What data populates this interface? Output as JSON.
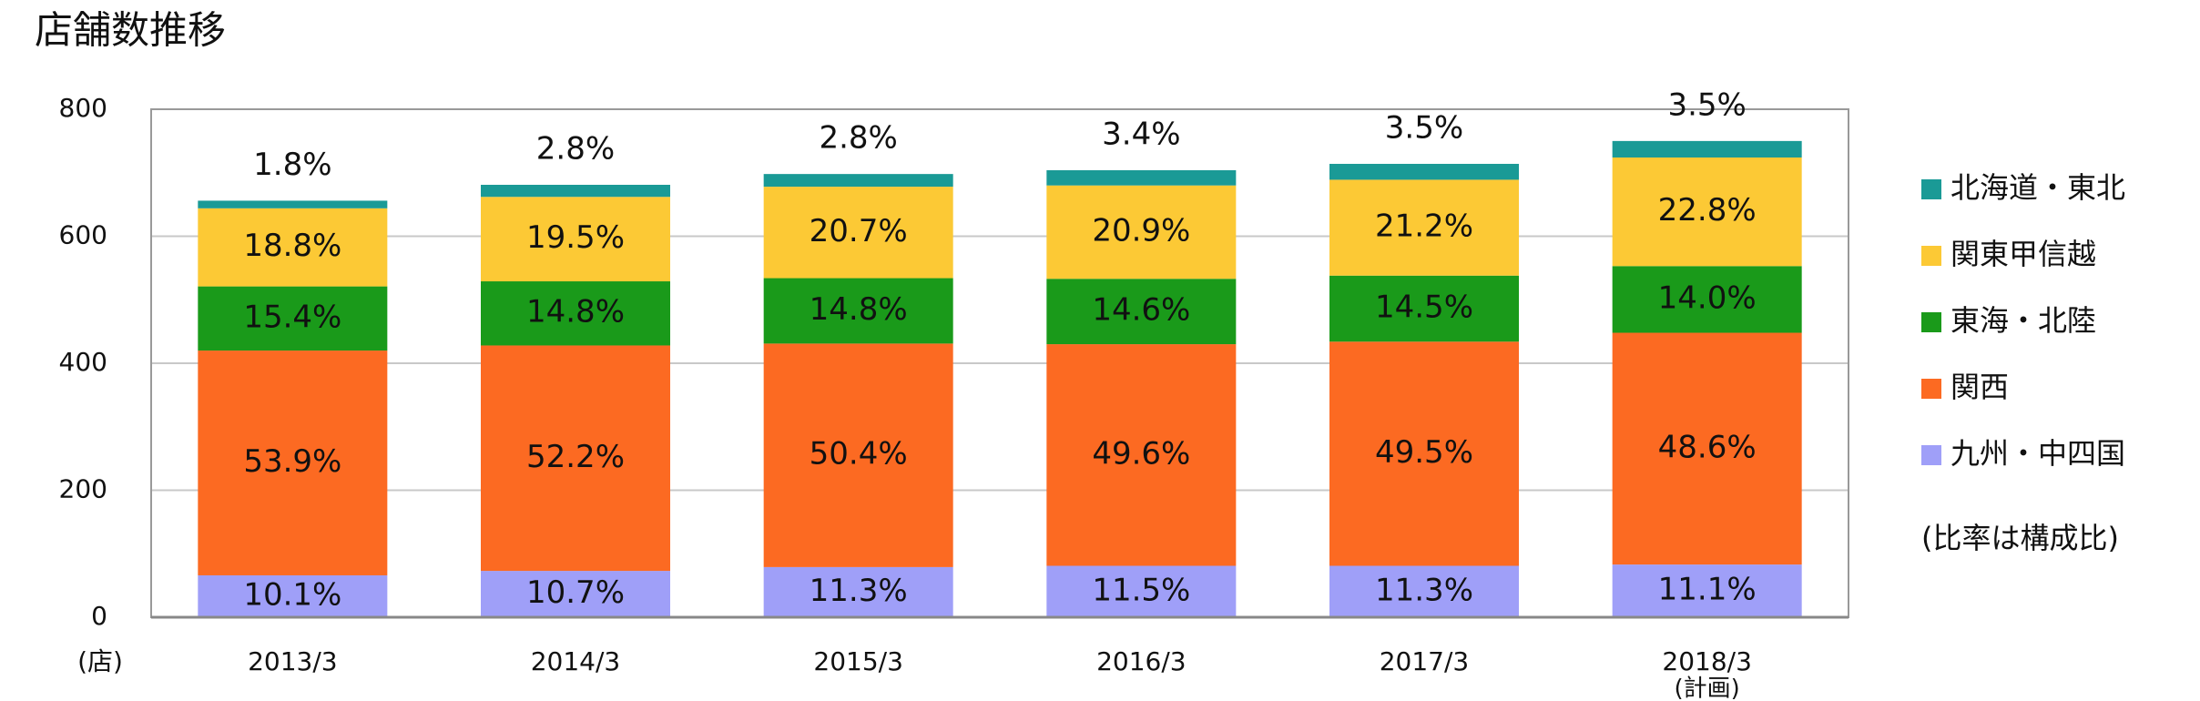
{
  "chart_data": {
    "type": "stacked-bar",
    "title": "店舗数推移",
    "y_unit": "(店)",
    "categories": [
      "2013/3",
      "2014/3",
      "2015/3",
      "2016/3",
      "2017/3",
      "2018/3"
    ],
    "category_notes": [
      null,
      null,
      null,
      null,
      null,
      "(計画)"
    ],
    "series": [
      {
        "name": "九州・中四国",
        "color": "#9f9ff8",
        "values": [
          66,
          73,
          79,
          81,
          81,
          83
        ],
        "share_labels": [
          "10.1%",
          "10.7%",
          "11.3%",
          "11.5%",
          "11.3%",
          "11.1%"
        ]
      },
      {
        "name": "関西",
        "color": "#fc6a22",
        "values": [
          354,
          355,
          352,
          349,
          353,
          365
        ],
        "share_labels": [
          "53.9%",
          "52.2%",
          "50.4%",
          "49.6%",
          "49.5%",
          "48.6%"
        ]
      },
      {
        "name": "東海・北陸",
        "color": "#1a9a1a",
        "values": [
          101,
          101,
          103,
          103,
          104,
          105
        ],
        "share_labels": [
          "15.4%",
          "14.8%",
          "14.8%",
          "14.6%",
          "14.5%",
          "14.0%"
        ]
      },
      {
        "name": "関東甲信越",
        "color": "#fcc935",
        "values": [
          123,
          133,
          144,
          147,
          151,
          171
        ],
        "share_labels": [
          "18.8%",
          "19.5%",
          "20.7%",
          "20.9%",
          "21.2%",
          "22.8%"
        ]
      },
      {
        "name": "北海道・東北",
        "color": "#1a9a96",
        "values": [
          12,
          19,
          20,
          24,
          25,
          26
        ],
        "share_labels": [
          "1.8%",
          "2.8%",
          "2.8%",
          "3.4%",
          "3.5%",
          "3.5%"
        ]
      }
    ],
    "ylim": [
      0,
      800
    ],
    "yticks": [
      0,
      200,
      400,
      600,
      800
    ],
    "grid": true,
    "note": "(比率は構成比)"
  }
}
